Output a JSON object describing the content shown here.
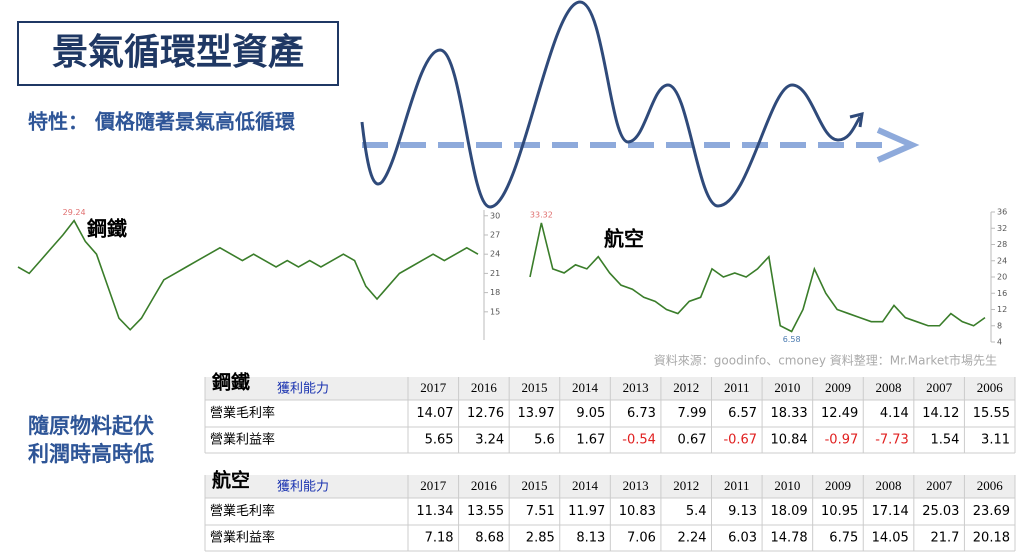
{
  "title": "景氣循環型資產",
  "subtitle": "特性： 價格隨著景氣高低循環",
  "side_note": [
    "隨原物料起伏",
    "利潤時高時低"
  ],
  "source": "資料來源：goodinfo、cmoney  資料整理：Mr.Market市場先生",
  "charts": [
    {
      "type": "line",
      "title": "鋼鐵",
      "color": "#3a7d2a",
      "values": [
        22,
        21,
        23,
        25,
        27,
        29.24,
        26,
        24,
        19,
        14,
        12.2,
        14,
        17,
        20,
        21,
        22,
        23,
        24,
        25,
        24,
        23,
        24,
        23,
        22,
        23,
        22,
        23,
        22,
        23,
        24,
        23,
        19,
        17,
        19,
        21,
        22,
        23,
        24,
        23,
        24,
        25,
        24
      ],
      "peak_label": {
        "index": 5,
        "label": "29.24"
      },
      "ylim": [
        10.6,
        30.9
      ],
      "yticks": [
        30,
        27,
        24,
        21,
        18,
        15
      ]
    },
    {
      "type": "line",
      "title": "航空",
      "color": "#3a7d2a",
      "values": [
        20,
        33.32,
        22,
        21,
        23,
        22,
        25,
        21,
        18,
        17,
        15,
        14,
        12,
        11,
        14,
        15,
        22,
        20,
        21,
        20,
        22,
        25,
        8,
        6.58,
        12,
        22,
        16,
        12,
        11,
        10,
        9,
        9,
        13,
        10,
        9,
        8,
        8,
        11,
        9,
        8,
        10
      ],
      "peak_label": {
        "index": 1,
        "label": "33.32"
      },
      "low_label": {
        "index": 23,
        "label": "6.58"
      },
      "ylim": [
        4,
        36
      ],
      "yticks": [
        36,
        32,
        28,
        24,
        20,
        16,
        12,
        8,
        4
      ]
    }
  ],
  "tables": [
    {
      "name": "鋼鐵",
      "header_label": "獲利能力",
      "years": [
        2017,
        2016,
        2015,
        2014,
        2013,
        2012,
        2011,
        2010,
        2009,
        2008,
        2007,
        2006
      ],
      "rows": [
        {
          "label": "營業毛利率",
          "values": [
            14.07,
            12.76,
            13.97,
            9.05,
            6.73,
            7.99,
            6.57,
            18.33,
            12.49,
            4.14,
            14.12,
            15.55
          ]
        },
        {
          "label": "營業利益率",
          "values": [
            5.65,
            3.24,
            5.6,
            1.67,
            -0.54,
            0.67,
            -0.67,
            10.84,
            -0.97,
            -7.73,
            1.54,
            3.11
          ]
        }
      ]
    },
    {
      "name": "航空",
      "header_label": "獲利能力",
      "years": [
        2017,
        2016,
        2015,
        2014,
        2013,
        2012,
        2011,
        2010,
        2009,
        2008,
        2007,
        2006
      ],
      "rows": [
        {
          "label": "營業毛利率",
          "values": [
            11.34,
            13.55,
            7.51,
            11.97,
            10.83,
            5.4,
            9.13,
            18.09,
            10.95,
            17.14,
            25.03,
            23.69
          ]
        },
        {
          "label": "營業利益率",
          "values": [
            7.18,
            8.68,
            2.85,
            8.13,
            7.06,
            2.24,
            6.03,
            14.78,
            6.75,
            14.05,
            21.7,
            20.18
          ]
        }
      ]
    }
  ]
}
